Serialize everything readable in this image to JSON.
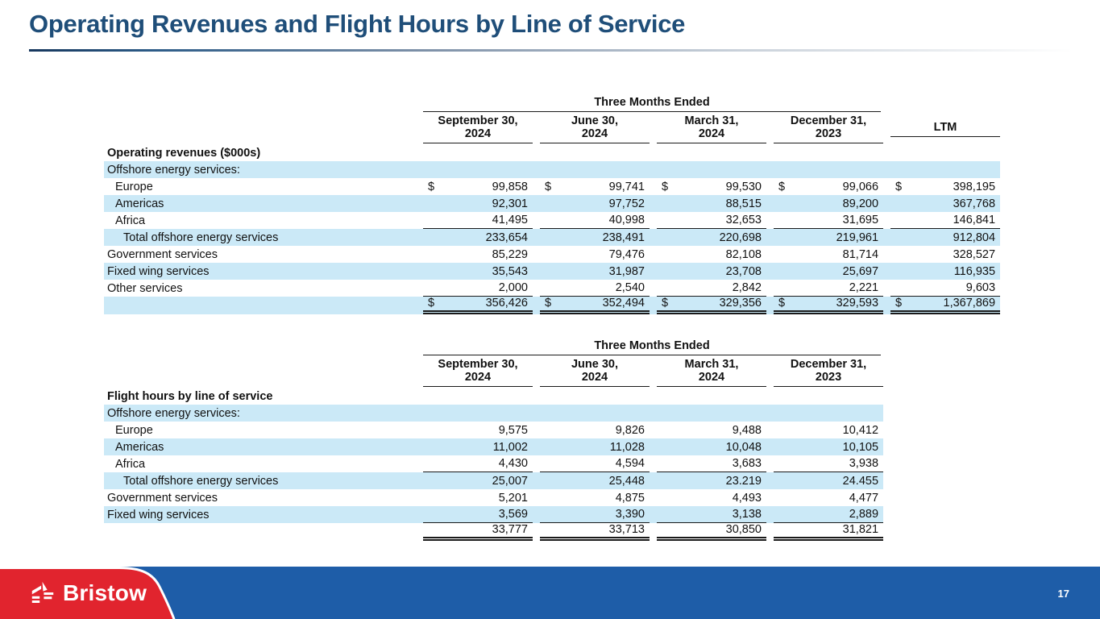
{
  "slide": {
    "title": "Operating Revenues and Flight Hours by Line of Service",
    "page_number": "17",
    "brand": "Bristow"
  },
  "colors": {
    "title_blue": "#1F4E79",
    "stripe_blue": "#CBE9F7",
    "footer_blue": "#1E5DA8",
    "brand_red": "#E1242E"
  },
  "tables": [
    {
      "id": "revenue-table",
      "span_header": "Three Months Ended",
      "span_cols": 4,
      "columns": [
        "September 30,\n2024",
        "June 30,\n2024",
        "March 31,\n2024",
        "December 31,\n2023",
        "LTM"
      ],
      "rows": [
        {
          "label": "Operating revenues ($000s)",
          "bold": true,
          "indent": 0,
          "stripe": false,
          "dollar": false,
          "underline": "none",
          "values": []
        },
        {
          "label": "Offshore energy services:",
          "bold": false,
          "indent": 0,
          "stripe": true,
          "dollar": false,
          "underline": "none",
          "values": []
        },
        {
          "label": "Europe",
          "bold": false,
          "indent": 1,
          "stripe": false,
          "dollar": true,
          "underline": "none",
          "values": [
            "99,858",
            "99,741",
            "99,530",
            "99,066",
            "398,195"
          ]
        },
        {
          "label": "Americas",
          "bold": false,
          "indent": 1,
          "stripe": true,
          "dollar": false,
          "underline": "none",
          "values": [
            "92,301",
            "97,752",
            "88,515",
            "89,200",
            "367,768"
          ]
        },
        {
          "label": "Africa",
          "bold": false,
          "indent": 1,
          "stripe": false,
          "dollar": false,
          "underline": "single",
          "values": [
            "41,495",
            "40,998",
            "32,653",
            "31,695",
            "146,841"
          ]
        },
        {
          "label": "Total offshore energy services",
          "bold": false,
          "indent": 2,
          "stripe": true,
          "dollar": false,
          "underline": "none",
          "values": [
            "233,654",
            "238,491",
            "220,698",
            "219,961",
            "912,804"
          ]
        },
        {
          "label": "Government services",
          "bold": false,
          "indent": 0,
          "stripe": false,
          "dollar": false,
          "underline": "none",
          "values": [
            "85,229",
            "79,476",
            "82,108",
            "81,714",
            "328,527"
          ]
        },
        {
          "label": "Fixed wing services",
          "bold": false,
          "indent": 0,
          "stripe": true,
          "dollar": false,
          "underline": "none",
          "values": [
            "35,543",
            "31,987",
            "23,708",
            "25,697",
            "116,935"
          ]
        },
        {
          "label": "Other services",
          "bold": false,
          "indent": 0,
          "stripe": false,
          "dollar": false,
          "underline": "single",
          "values": [
            "2,000",
            "2,540",
            "2,842",
            "2,221",
            "9,603"
          ]
        },
        {
          "label": "",
          "bold": false,
          "indent": 0,
          "stripe": true,
          "dollar": true,
          "underline": "double",
          "values": [
            "356,426",
            "352,494",
            "329,356",
            "329,593",
            "1,367,869"
          ]
        }
      ]
    },
    {
      "id": "hours-table",
      "span_header": "Three Months Ended",
      "span_cols": 4,
      "columns": [
        "September 30,\n2024",
        "June 30,\n2024",
        "March 31,\n2024",
        "December 31,\n2023"
      ],
      "rows": [
        {
          "label": "Flight hours by line of service",
          "bold": true,
          "indent": 0,
          "stripe": false,
          "dollar": false,
          "underline": "none",
          "values": []
        },
        {
          "label": "Offshore energy services:",
          "bold": false,
          "indent": 0,
          "stripe": true,
          "dollar": false,
          "underline": "none",
          "values": []
        },
        {
          "label": "Europe",
          "bold": false,
          "indent": 1,
          "stripe": false,
          "dollar": false,
          "underline": "none",
          "values": [
            "9,575",
            "9,826",
            "9,488",
            "10,412"
          ]
        },
        {
          "label": "Americas",
          "bold": false,
          "indent": 1,
          "stripe": true,
          "dollar": false,
          "underline": "none",
          "values": [
            "11,002",
            "11,028",
            "10,048",
            "10,105"
          ]
        },
        {
          "label": "Africa",
          "bold": false,
          "indent": 1,
          "stripe": false,
          "dollar": false,
          "underline": "single",
          "values": [
            "4,430",
            "4,594",
            "3,683",
            "3,938"
          ]
        },
        {
          "label": "Total offshore energy services",
          "bold": false,
          "indent": 2,
          "stripe": true,
          "dollar": false,
          "underline": "none",
          "values": [
            "25,007",
            "25,448",
            "23.219",
            "24.455"
          ]
        },
        {
          "label": "Government services",
          "bold": false,
          "indent": 0,
          "stripe": false,
          "dollar": false,
          "underline": "none",
          "values": [
            "5,201",
            "4,875",
            "4,493",
            "4,477"
          ]
        },
        {
          "label": "Fixed wing services",
          "bold": false,
          "indent": 0,
          "stripe": true,
          "dollar": false,
          "underline": "single",
          "values": [
            "3,569",
            "3,390",
            "3,138",
            "2,889"
          ]
        },
        {
          "label": "",
          "bold": false,
          "indent": 0,
          "stripe": false,
          "dollar": false,
          "underline": "double",
          "values": [
            "33,777",
            "33,713",
            "30,850",
            "31,821"
          ]
        }
      ]
    }
  ],
  "layout_note_labels": {
    "label_col_width": 387,
    "num_col_width": 145
  }
}
